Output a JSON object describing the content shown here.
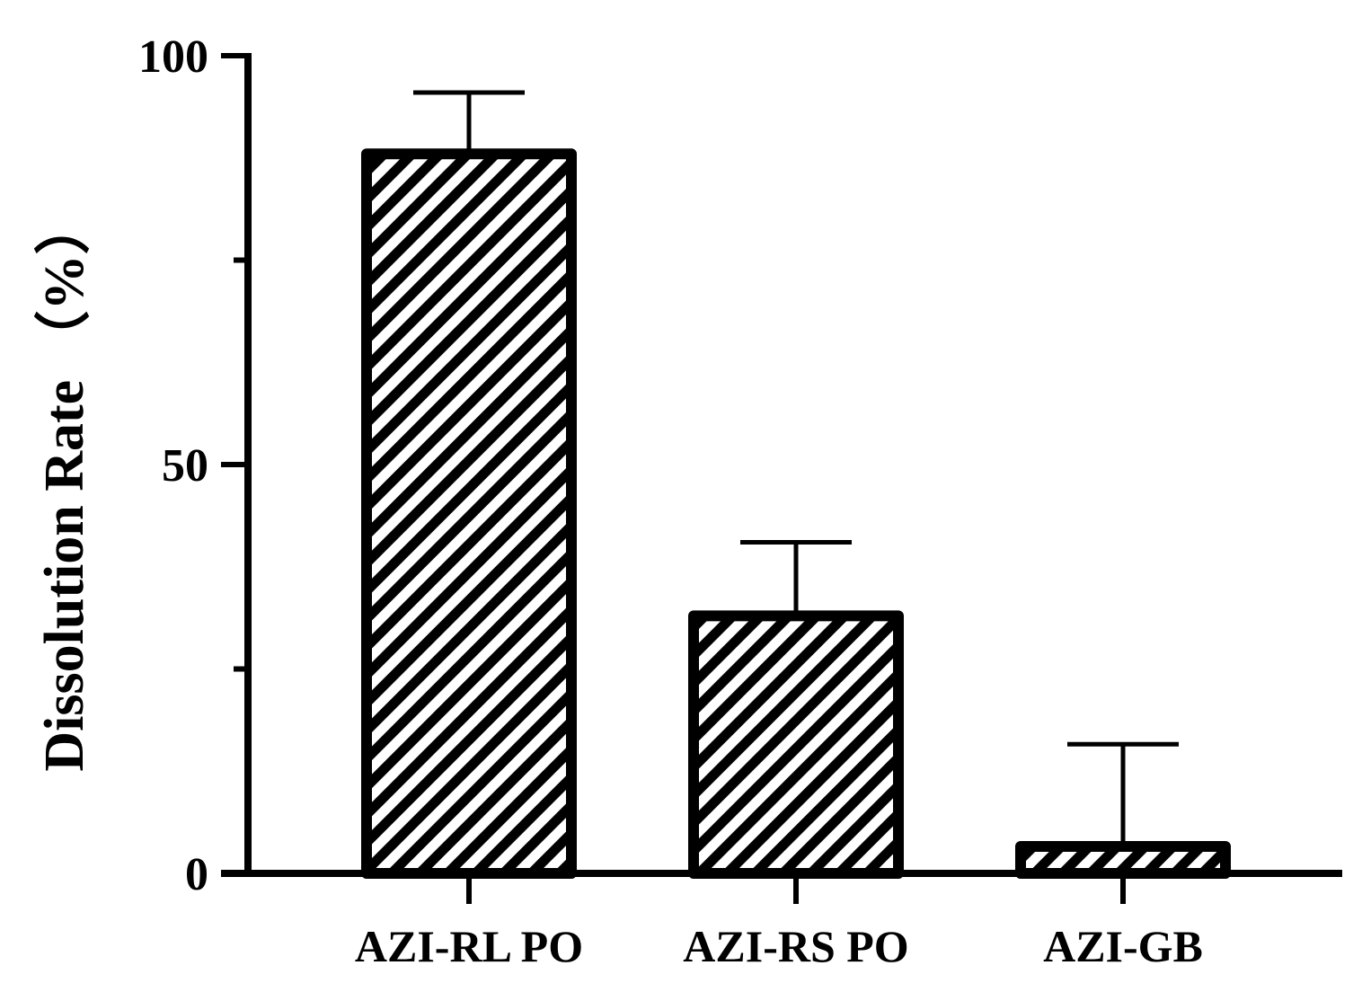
{
  "chart_data": {
    "type": "bar",
    "title": "",
    "xlabel": "",
    "ylabel": "Dissolution Rate （%）",
    "ylim": [
      0,
      100
    ],
    "yticks_major": [
      0,
      50,
      100
    ],
    "yticks_minor": [
      25,
      75
    ],
    "grid": false,
    "categories": [
      "AZI-RL PO",
      "AZI-RS PO",
      "AZI-GB"
    ],
    "values": [
      88,
      31.5,
      3.3
    ],
    "error_upper": [
      7.5,
      9,
      12.5
    ],
    "fill_pattern": "diagonal-hatch",
    "colors": {
      "ink": "#000000",
      "background": "#ffffff"
    }
  }
}
